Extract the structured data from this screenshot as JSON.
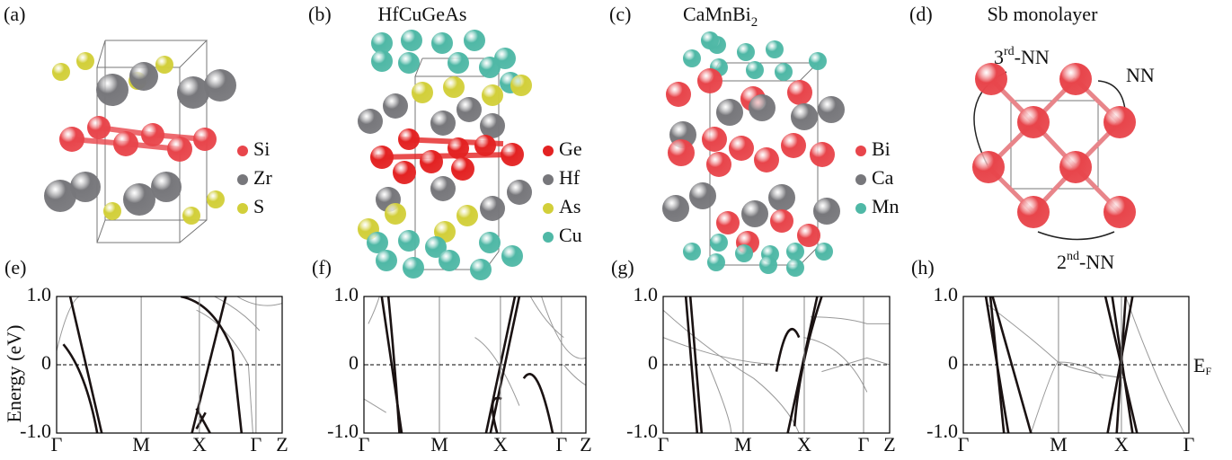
{
  "structures": [
    {
      "panel": "(a)",
      "legend": [
        {
          "name": "Si",
          "color": "#e8454b"
        },
        {
          "name": "Zr",
          "color": "#77777b"
        },
        {
          "name": "S",
          "color": "#d2cf3a"
        }
      ]
    },
    {
      "panel": "(b)",
      "title": "HfCuGeAs",
      "legend": [
        {
          "name": "Ge",
          "color": "#e32222"
        },
        {
          "name": "Hf",
          "color": "#77777b"
        },
        {
          "name": "As",
          "color": "#d2cf3a"
        },
        {
          "name": "Cu",
          "color": "#4fb8a6"
        }
      ]
    },
    {
      "panel": "(c)",
      "title": "CaMnBi",
      "title_subscript": "2",
      "legend": [
        {
          "name": "Bi",
          "color": "#e8454b"
        },
        {
          "name": "Ca",
          "color": "#77777b"
        },
        {
          "name": "Mn",
          "color": "#4fb8a6"
        }
      ]
    },
    {
      "panel": "(d)",
      "title": "Sb monolayer",
      "atom_color": "#e8454b",
      "labels": [
        {
          "text": "3",
          "superscript": "rd",
          "suffix": "-NN"
        },
        {
          "text": "NN"
        },
        {
          "text": "2",
          "superscript": "nd",
          "suffix": "-NN"
        }
      ]
    }
  ],
  "bands": {
    "ylabel": "Energy (eV)",
    "ylim": [
      -1,
      1
    ],
    "yticks": [
      {
        "value": 1,
        "label": "1.0"
      },
      0,
      {
        "value": -1,
        "label": "-1.0"
      }
    ],
    "fermi_label": "E",
    "fermi_subscript": "F",
    "panels": [
      {
        "panel": "(e)",
        "kpoints": [
          "Γ",
          "M",
          "X",
          "Γ",
          "Z"
        ]
      },
      {
        "panel": "(f)",
        "kpoints": [
          "Γ",
          "M",
          "X",
          "Γ",
          "Z"
        ]
      },
      {
        "panel": "(g)",
        "kpoints": [
          "Γ",
          "M",
          "X",
          "Γ",
          "Z"
        ]
      },
      {
        "panel": "(h)",
        "kpoints": [
          "Γ",
          "M",
          "X",
          "Γ"
        ]
      }
    ]
  }
}
